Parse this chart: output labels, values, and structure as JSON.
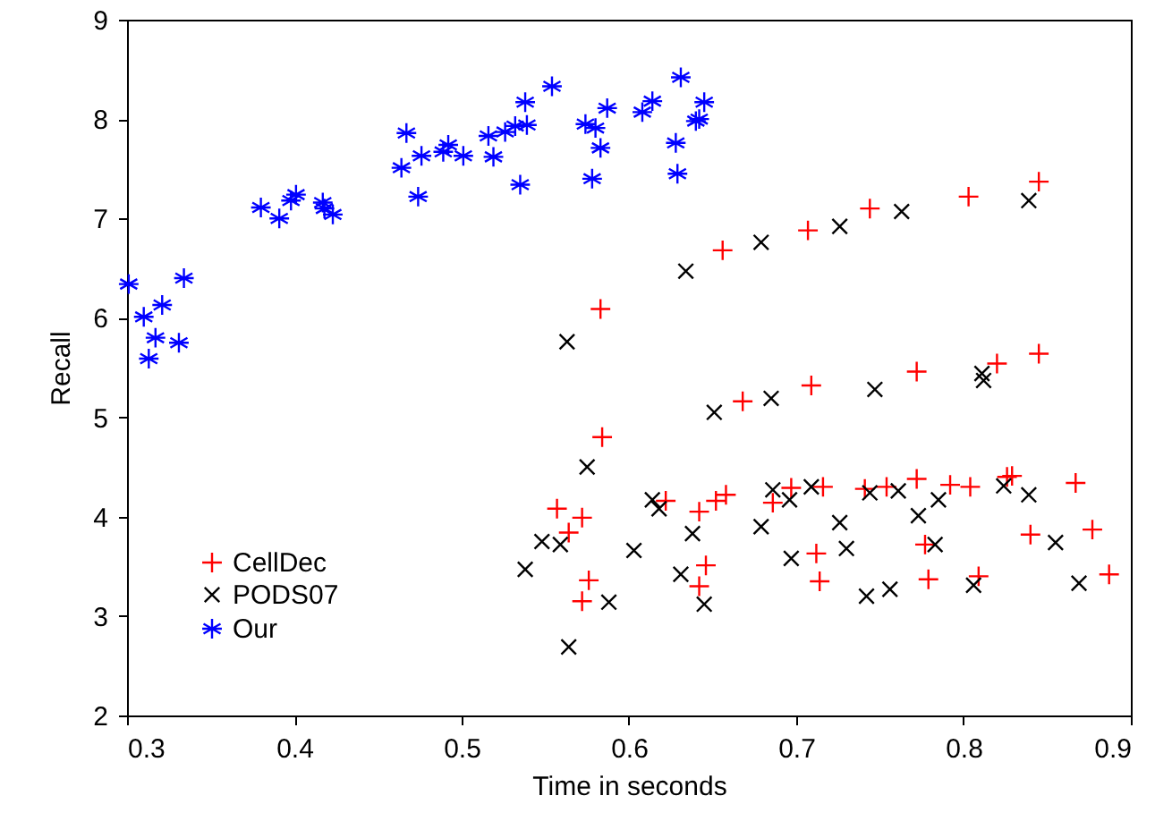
{
  "chart_data": {
    "type": "scatter",
    "xlabel": "Time in seconds",
    "ylabel": "Recall",
    "xlim": [
      0.3,
      0.9
    ],
    "xticks": [
      0.3,
      0.4,
      0.5,
      0.6,
      0.7,
      0.8,
      0.9
    ],
    "ylim": [
      2,
      9
    ],
    "yticks": [
      2,
      3,
      4,
      5,
      6,
      7,
      8,
      9
    ],
    "grid": false,
    "legend": "bottom left",
    "series": [
      {
        "name": "CellDec",
        "color": "#ff0000",
        "x": [
          0.583,
          0.656,
          0.707,
          0.744,
          0.803,
          0.845,
          0.668,
          0.709,
          0.772,
          0.82,
          0.845,
          0.584,
          0.557,
          0.572,
          0.564,
          0.576,
          0.572,
          0.622,
          0.642,
          0.652,
          0.658,
          0.646,
          0.642,
          0.686,
          0.697,
          0.716,
          0.712,
          0.714,
          0.741,
          0.754,
          0.772,
          0.792,
          0.804,
          0.777,
          0.779,
          0.809,
          0.826,
          0.829,
          0.84,
          0.867,
          0.877,
          0.887
        ],
        "values": [
          6.09,
          6.68,
          6.88,
          7.1,
          7.22,
          7.37,
          5.16,
          5.32,
          5.46,
          5.54,
          5.64,
          4.8,
          4.08,
          3.99,
          3.84,
          3.36,
          3.15,
          4.16,
          4.05,
          4.16,
          4.22,
          3.51,
          3.3,
          4.14,
          4.29,
          4.3,
          3.63,
          3.35,
          4.28,
          4.3,
          4.38,
          4.32,
          4.3,
          3.72,
          3.37,
          3.4,
          4.4,
          4.41,
          3.82,
          4.34,
          3.87,
          3.42
        ]
      },
      {
        "name": "PODS07",
        "color": "#000000",
        "x": [
          0.563,
          0.634,
          0.679,
          0.726,
          0.763,
          0.839,
          0.651,
          0.685,
          0.747,
          0.811,
          0.812,
          0.575,
          0.548,
          0.559,
          0.588,
          0.564,
          0.538,
          0.603,
          0.614,
          0.618,
          0.638,
          0.631,
          0.645,
          0.679,
          0.686,
          0.696,
          0.709,
          0.697,
          0.726,
          0.73,
          0.742,
          0.756,
          0.744,
          0.761,
          0.773,
          0.785,
          0.783,
          0.806,
          0.824,
          0.839,
          0.855,
          0.869
        ],
        "values": [
          5.76,
          6.47,
          6.76,
          6.92,
          7.07,
          7.18,
          5.05,
          5.19,
          5.28,
          5.44,
          5.37,
          4.5,
          3.75,
          3.72,
          3.14,
          2.69,
          3.47,
          3.66,
          4.17,
          4.08,
          3.83,
          3.42,
          3.12,
          3.9,
          4.27,
          4.17,
          4.3,
          3.58,
          3.94,
          3.68,
          3.2,
          3.27,
          4.24,
          4.26,
          4.01,
          4.17,
          3.72,
          3.31,
          4.31,
          4.22,
          3.74,
          3.33
        ]
      },
      {
        "name": "Our",
        "color": "#0000ff",
        "x": [
          0.301,
          0.31,
          0.321,
          0.317,
          0.313,
          0.331,
          0.334,
          0.38,
          0.391,
          0.398,
          0.401,
          0.417,
          0.418,
          0.423,
          0.464,
          0.467,
          0.474,
          0.476,
          0.489,
          0.492,
          0.501,
          0.516,
          0.519,
          0.526,
          0.532,
          0.538,
          0.539,
          0.535,
          0.554,
          0.574,
          0.578,
          0.58,
          0.583,
          0.587,
          0.608,
          0.614,
          0.631,
          0.645,
          0.64,
          0.642,
          0.628,
          0.629
        ],
        "values": [
          6.34,
          6.01,
          6.13,
          5.8,
          5.59,
          5.75,
          6.4,
          7.11,
          7.0,
          7.18,
          7.24,
          7.16,
          7.1,
          7.04,
          7.51,
          7.86,
          7.22,
          7.63,
          7.67,
          7.74,
          7.63,
          7.83,
          7.62,
          7.87,
          7.93,
          8.17,
          7.94,
          7.34,
          8.33,
          7.95,
          7.4,
          7.91,
          7.71,
          8.11,
          8.07,
          8.18,
          8.42,
          8.17,
          7.98,
          8.0,
          7.76,
          7.45
        ]
      }
    ]
  }
}
